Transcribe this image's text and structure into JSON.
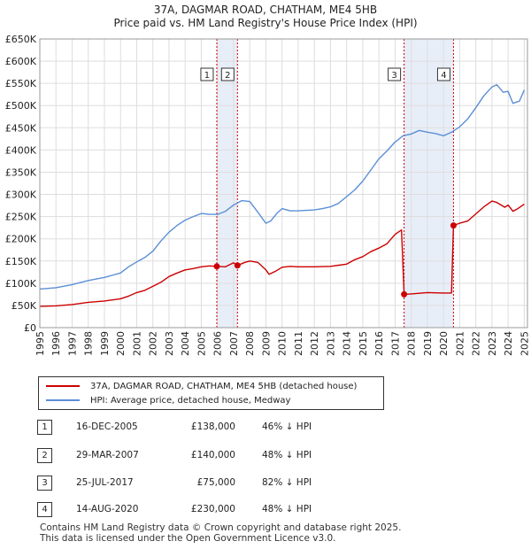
{
  "title": "37A, DAGMAR ROAD, CHATHAM, ME4 5HB",
  "subtitle": "Price paid vs. HM Land Registry's House Price Index (HPI)",
  "legend": {
    "price_label": "37A, DAGMAR ROAD, CHATHAM, ME4 5HB (detached house)",
    "hpi_label": "HPI: Average price, detached house, Medway"
  },
  "transactions": [
    {
      "num": "1",
      "date": "16-DEC-2005",
      "price": "£138,000",
      "hpi": "46% ↓ HPI"
    },
    {
      "num": "2",
      "date": "29-MAR-2007",
      "price": "£140,000",
      "hpi": "48% ↓ HPI"
    },
    {
      "num": "3",
      "date": "25-JUL-2017",
      "price": "£75,000",
      "hpi": "82% ↓ HPI"
    },
    {
      "num": "4",
      "date": "14-AUG-2020",
      "price": "£230,000",
      "hpi": "48% ↓ HPI"
    }
  ],
  "footer": {
    "line1": "Contains HM Land Registry data © Crown copyright and database right 2025.",
    "line2": "This data is licensed under the Open Government Licence v3.0."
  },
  "colors": {
    "price": "#cc0000",
    "hpi": "#5b8fd6",
    "band": "#e8eef8",
    "vline": "#cc0000"
  },
  "chart_data": {
    "type": "line",
    "title": "37A, DAGMAR ROAD, CHATHAM, ME4 5HB",
    "xlim": [
      1995,
      2025.2
    ],
    "ylim": [
      0,
      650000
    ],
    "y_ticks": [
      0,
      50000,
      100000,
      150000,
      200000,
      250000,
      300000,
      350000,
      400000,
      450000,
      500000,
      550000,
      600000,
      650000
    ],
    "y_tick_labels": [
      "£0",
      "£50K",
      "£100K",
      "£150K",
      "£200K",
      "£250K",
      "£300K",
      "£350K",
      "£400K",
      "£450K",
      "£500K",
      "£550K",
      "£600K",
      "£650K"
    ],
    "x_ticks": [
      1995,
      1996,
      1997,
      1998,
      1999,
      2000,
      2001,
      2002,
      2003,
      2004,
      2005,
      2006,
      2007,
      2008,
      2009,
      2010,
      2011,
      2012,
      2013,
      2014,
      2015,
      2016,
      2017,
      2018,
      2019,
      2020,
      2021,
      2022,
      2023,
      2024,
      2025
    ],
    "x_tick_labels": [
      "1995",
      "1996",
      "1997",
      "1998",
      "1999",
      "2000",
      "2001",
      "2002",
      "2003",
      "2004",
      "2005",
      "2006",
      "2007",
      "2008",
      "2009",
      "2010",
      "2011",
      "2012",
      "2013",
      "2014",
      "2015",
      "2016",
      "2017",
      "2018",
      "2019",
      "2020",
      "2021",
      "2022",
      "2023",
      "2024",
      "2025"
    ],
    "highlight_ranges": [
      [
        2005.96,
        2007.24
      ],
      [
        2017.56,
        2020.62
      ]
    ],
    "markers": [
      {
        "label": "1",
        "x": 2005.96,
        "y": 138000
      },
      {
        "label": "2",
        "x": 2007.24,
        "y": 140000
      },
      {
        "label": "3",
        "x": 2017.56,
        "y": 75000
      },
      {
        "label": "4",
        "x": 2020.62,
        "y": 230000
      }
    ],
    "series": [
      {
        "name": "37A, DAGMAR ROAD, CHATHAM, ME4 5HB (detached house)",
        "x": [
          1995,
          1996,
          1997,
          1998,
          1999,
          2000,
          2000.5,
          2001,
          2001.5,
          2002,
          2002.5,
          2003,
          2003.5,
          2004,
          2004.5,
          2005,
          2005.5,
          2005.96,
          2006.5,
          2007,
          2007.24,
          2007.7,
          2008,
          2008.5,
          2009,
          2009.2,
          2009.6,
          2010,
          2010.5,
          2011,
          2012,
          2013,
          2014,
          2014.5,
          2015,
          2015.5,
          2016,
          2016.5,
          2017,
          2017.4,
          2017.56,
          2018,
          2019,
          2020,
          2020.5,
          2020.62,
          2021,
          2021.5,
          2022,
          2022.5,
          2023,
          2023.3,
          2023.8,
          2024,
          2024.3,
          2024.6,
          2025
        ],
        "y": [
          48000,
          49000,
          52000,
          57000,
          60000,
          65000,
          71000,
          79000,
          84000,
          93000,
          102000,
          115000,
          123000,
          130000,
          133000,
          137000,
          139000,
          138000,
          137000,
          146000,
          140000,
          147000,
          150000,
          147000,
          130000,
          120000,
          127000,
          136000,
          138000,
          137000,
          137000,
          138000,
          143000,
          153000,
          160000,
          171000,
          179000,
          189000,
          210000,
          220000,
          75000,
          76000,
          79000,
          78000,
          78000,
          230000,
          235000,
          240000,
          256000,
          272000,
          285000,
          282000,
          271000,
          276000,
          262000,
          268000,
          278000
        ]
      },
      {
        "name": "HPI: Average price, detached house, Medway",
        "x": [
          1995,
          1996,
          1997,
          1998,
          1999,
          2000,
          2000.5,
          2001,
          2001.5,
          2002,
          2002.5,
          2003,
          2003.5,
          2004,
          2004.5,
          2005,
          2005.5,
          2006,
          2006.5,
          2007,
          2007.5,
          2008,
          2008.5,
          2009,
          2009.3,
          2009.7,
          2010,
          2010.5,
          2011,
          2012,
          2012.5,
          2013,
          2013.5,
          2014,
          2014.5,
          2015,
          2015.5,
          2016,
          2016.5,
          2017,
          2017.5,
          2018,
          2018.5,
          2019,
          2019.5,
          2020,
          2020.5,
          2021,
          2021.5,
          2022,
          2022.5,
          2023,
          2023.3,
          2023.7,
          2024,
          2024.3,
          2024.7,
          2025
        ],
        "y": [
          87000,
          90000,
          97000,
          106000,
          113000,
          123000,
          137000,
          148000,
          158000,
          172000,
          195000,
          215000,
          230000,
          242000,
          250000,
          257000,
          255000,
          255000,
          262000,
          276000,
          286000,
          284000,
          260000,
          235000,
          240000,
          258000,
          268000,
          263000,
          263000,
          265000,
          268000,
          272000,
          280000,
          295000,
          310000,
          330000,
          355000,
          380000,
          398000,
          418000,
          432000,
          436000,
          444000,
          440000,
          437000,
          432000,
          440000,
          452000,
          470000,
          495000,
          522000,
          542000,
          547000,
          530000,
          532000,
          505000,
          510000,
          535000
        ]
      }
    ]
  }
}
